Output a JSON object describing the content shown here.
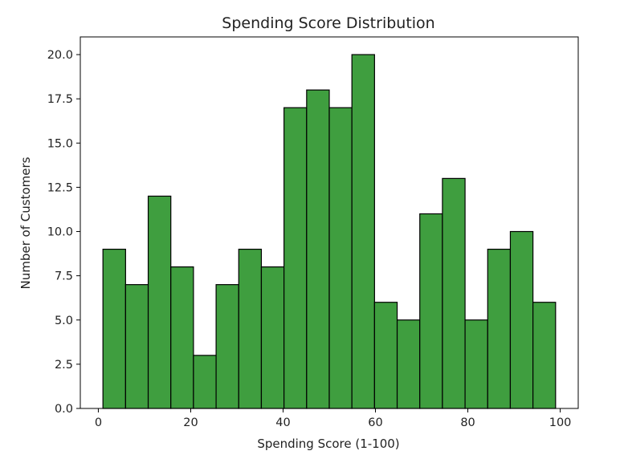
{
  "chart_data": {
    "type": "bar",
    "title": "Spending Score Distribution",
    "xlabel": "Spending Score (1-100)",
    "ylabel": "Number of Customers",
    "xlim": [
      -3.9,
      103.9
    ],
    "ylim": [
      0,
      21
    ],
    "xticks": [
      0,
      20,
      40,
      60,
      80,
      100
    ],
    "yticks": [
      0.0,
      2.5,
      5.0,
      7.5,
      10.0,
      12.5,
      15.0,
      17.5,
      20.0
    ],
    "xtick_labels": [
      "0",
      "20",
      "40",
      "60",
      "80",
      "100"
    ],
    "ytick_labels": [
      "0.0",
      "2.5",
      "5.0",
      "7.5",
      "10.0",
      "12.5",
      "15.0",
      "17.5",
      "20.0"
    ],
    "bin_edges": [
      1,
      5.9,
      10.8,
      15.7,
      20.6,
      25.5,
      30.4,
      35.3,
      40.2,
      45.1,
      50,
      54.9,
      59.8,
      64.7,
      69.6,
      74.5,
      79.4,
      84.3,
      89.2,
      94.1,
      99
    ],
    "values": [
      9,
      7,
      12,
      8,
      3,
      7,
      9,
      8,
      17,
      18,
      17,
      20,
      6,
      5,
      11,
      13,
      5,
      9,
      10,
      6
    ],
    "bar_color": "#3f9e3f",
    "edge_color": "#000000",
    "grid": false,
    "legend": "none"
  }
}
